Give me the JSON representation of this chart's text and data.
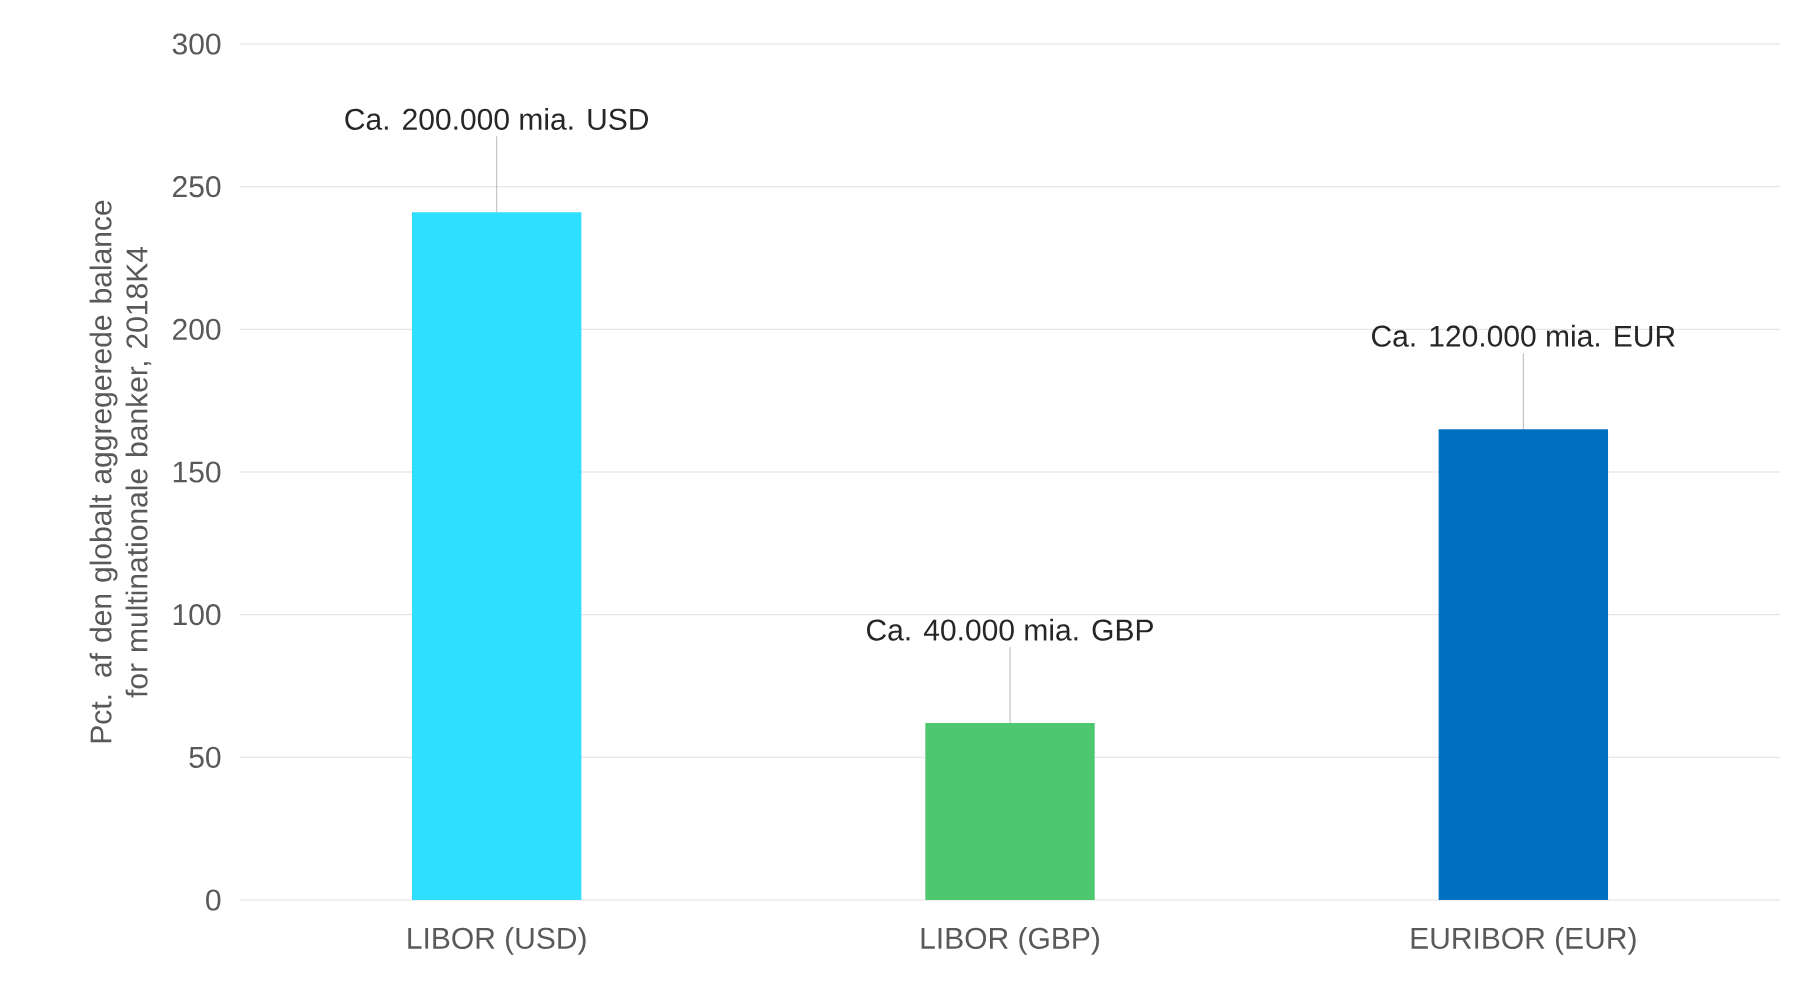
{
  "chart_data": {
    "type": "bar",
    "ylabel": "Pct. af den globalt aggregerede balance for multinationale banker, 2018K4",
    "categories": [
      "LIBOR (USD)",
      "LIBOR (GBP)",
      "EURIBOR (EUR)"
    ],
    "values": [
      241,
      62,
      165
    ],
    "colors": [
      "#2edfff",
      "#4dc870",
      "#0070c0"
    ],
    "ylim": [
      0,
      300
    ],
    "yticks": [
      0,
      50,
      100,
      150,
      200,
      250,
      300
    ],
    "grid": "y",
    "annotations": [
      {
        "text": "Ca. 200.000 mia. USD",
        "x": "LIBOR (USD)",
        "y": 241
      },
      {
        "text": "Ca. 40.000 mia. GBP",
        "x": "LIBOR (GBP)",
        "y": 62
      },
      {
        "text": "Ca. 120.000 mia. EUR",
        "x": "EURIBOR (EUR)",
        "y": 165
      }
    ]
  }
}
